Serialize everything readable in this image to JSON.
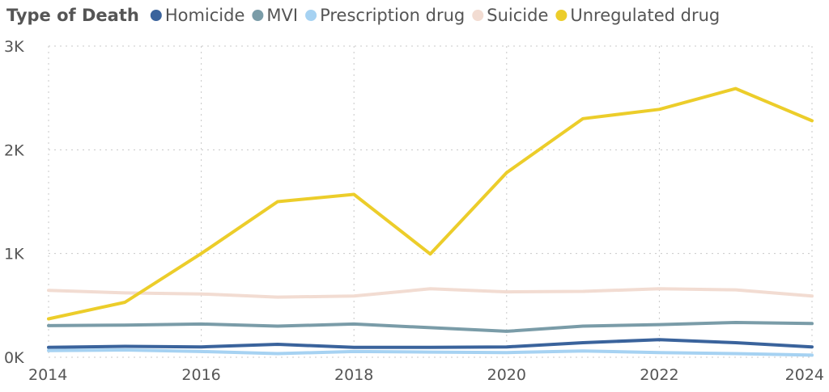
{
  "chart_data": {
    "type": "line",
    "title": "",
    "legend_title": "Type of Death",
    "xlabel": "",
    "ylabel": "",
    "x": [
      2014,
      2015,
      2016,
      2017,
      2018,
      2019,
      2020,
      2021,
      2022,
      2023,
      2024
    ],
    "xlim": [
      2014,
      2024
    ],
    "ylim": [
      0,
      3000
    ],
    "x_ticks": [
      "2014",
      "2016",
      "2018",
      "2020",
      "2022",
      "2024"
    ],
    "y_ticks": [
      {
        "value": 0,
        "label": "0K"
      },
      {
        "value": 1000,
        "label": "1K"
      },
      {
        "value": 2000,
        "label": "2K"
      },
      {
        "value": 3000,
        "label": "3K"
      }
    ],
    "grid": true,
    "legend_position": "top-left",
    "series": [
      {
        "name": "Homicide",
        "color": "#3A639C",
        "values": [
          95,
          105,
          100,
          125,
          95,
          95,
          100,
          140,
          170,
          140,
          100
        ]
      },
      {
        "name": "MVI",
        "color": "#7A9CA8",
        "values": [
          305,
          310,
          320,
          300,
          320,
          285,
          250,
          300,
          315,
          335,
          325
        ]
      },
      {
        "name": "Prescription drug",
        "color": "#A6D2F2",
        "values": [
          65,
          70,
          55,
          35,
          55,
          50,
          45,
          60,
          45,
          35,
          20
        ]
      },
      {
        "name": "Suicide",
        "color": "#F2DCD2",
        "values": [
          645,
          620,
          610,
          580,
          590,
          660,
          630,
          635,
          660,
          650,
          590
        ]
      },
      {
        "name": "Unregulated drug",
        "color": "#ECCD2A",
        "values": [
          370,
          530,
          1000,
          1500,
          1570,
          995,
          1780,
          2300,
          2390,
          2590,
          2280
        ]
      }
    ]
  }
}
